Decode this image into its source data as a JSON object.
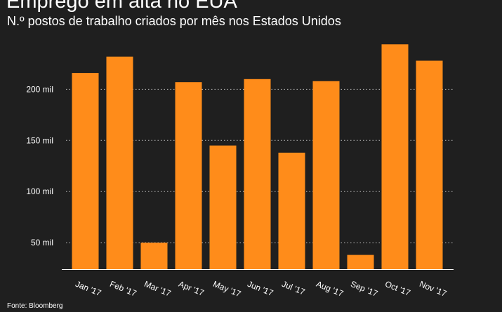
{
  "header": {
    "title": "Emprego em alta no EUA",
    "subtitle": "N.º postos de trabalho criados por mês nos Estados Unidos"
  },
  "footer": {
    "source": "Fonte: Bloomberg"
  },
  "colors": {
    "background": "#1f1f1f",
    "bar": "#ff8c1a",
    "text": "#ffffff",
    "grid": "#bdbdbd"
  },
  "chart_data": {
    "type": "bar",
    "title": "Emprego em alta no EUA",
    "subtitle": "N.º postos de trabalho criados por mês nos Estados Unidos",
    "xlabel": "",
    "ylabel": "",
    "categories": [
      "Jan '17",
      "Feb '17",
      "Mar '17",
      "Apr '17",
      "May '17",
      "Jun '17",
      "Jul '17",
      "Aug '17",
      "Sep '17",
      "Oct '17",
      "Nov '17"
    ],
    "values": [
      216,
      232,
      50,
      207,
      145,
      210,
      138,
      208,
      38,
      244,
      228
    ],
    "value_unit": "mil",
    "y_ticks": [
      50,
      100,
      150,
      200
    ],
    "y_tick_labels": [
      "50 mil",
      "100 mil",
      "150 mil",
      "200 mil"
    ],
    "ylim": [
      24,
      250
    ],
    "grid": "horizontal dotted",
    "legend": "none"
  }
}
